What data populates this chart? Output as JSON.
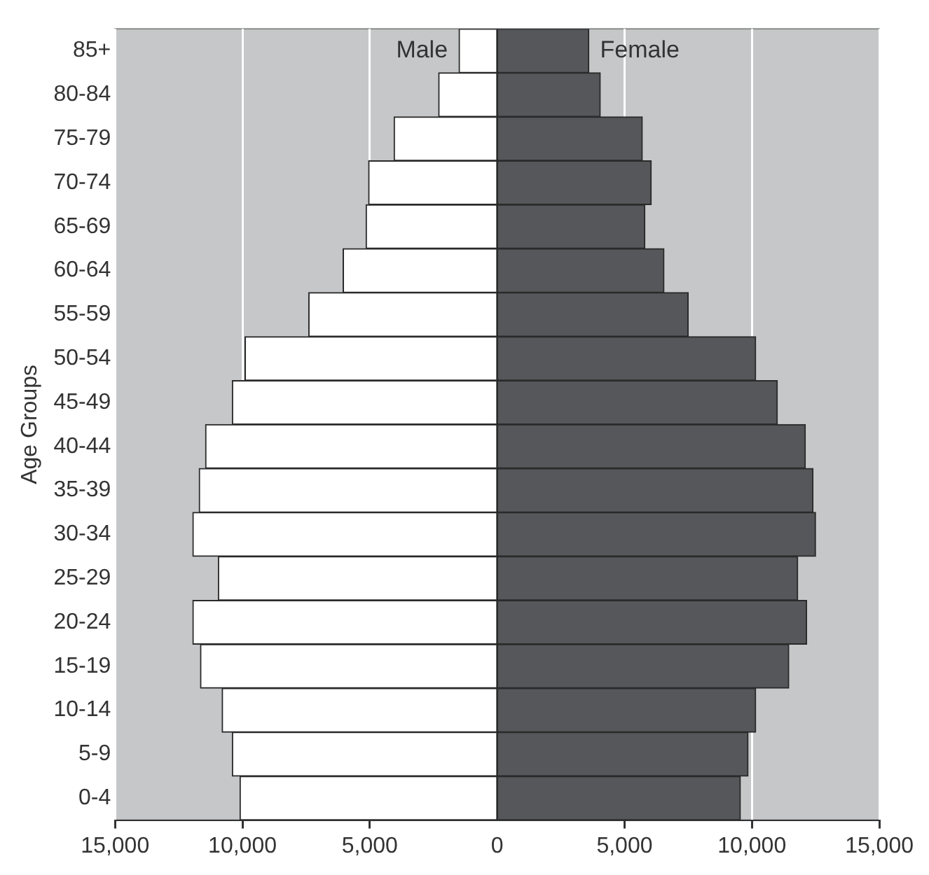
{
  "chart_data": {
    "type": "bar",
    "orientation": "horizontal",
    "stacked": true,
    "ylabel": "Age Groups",
    "categories": [
      "85+",
      "80-84",
      "75-79",
      "70-74",
      "65-69",
      "60-64",
      "55-59",
      "50-54",
      "45-49",
      "40-44",
      "35-39",
      "30-34",
      "25-29",
      "20-24",
      "15-19",
      "10-14",
      "5-9",
      "0-4"
    ],
    "series": [
      {
        "name": "Male",
        "color": "#ffffff",
        "values": [
          -1500,
          -2300,
          -4050,
          -5050,
          -5150,
          -6050,
          -7400,
          -9900,
          -10400,
          -11450,
          -11700,
          -11950,
          -10950,
          -11950,
          -11650,
          -10800,
          -10400,
          -10100
        ]
      },
      {
        "name": "Female",
        "color": "#55575a",
        "values": [
          3600,
          4050,
          5700,
          6050,
          5800,
          6550,
          7500,
          10150,
          11000,
          12100,
          12400,
          12500,
          11800,
          12150,
          11450,
          10150,
          9850,
          9550
        ]
      }
    ],
    "xlim": [
      -15000,
      15000
    ],
    "xticks": [
      {
        "value": -15000,
        "label": "15,000"
      },
      {
        "value": -10000,
        "label": "10,000"
      },
      {
        "value": -5000,
        "label": "5,000"
      },
      0,
      {
        "value": 5000,
        "label": "5,000"
      },
      {
        "value": 10000,
        "label": "10,000"
      },
      {
        "value": 15000,
        "label": "15,000"
      }
    ],
    "grid": "x",
    "legend": false
  }
}
